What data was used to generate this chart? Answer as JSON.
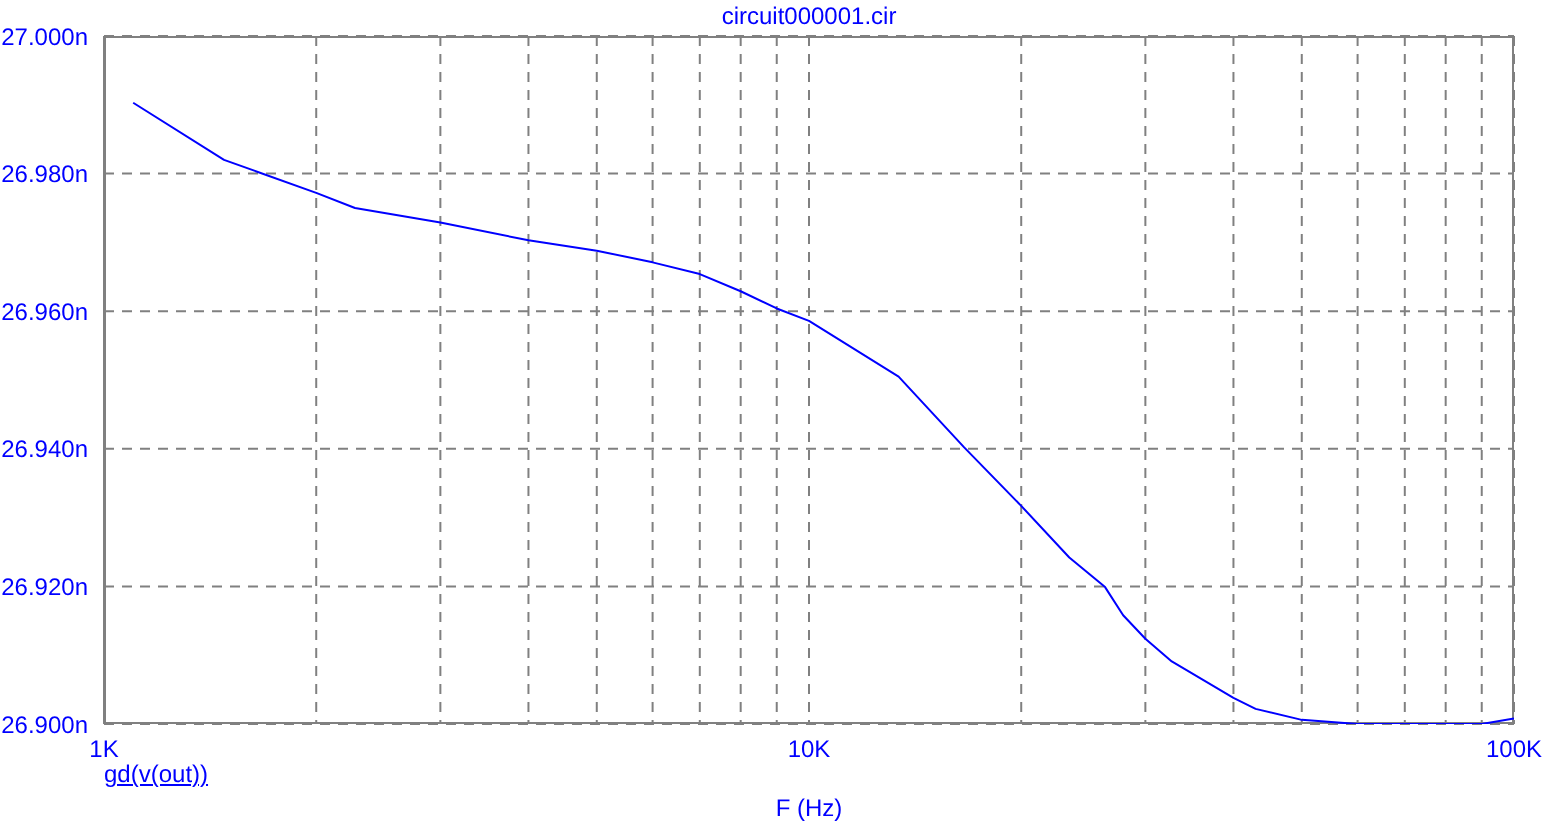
{
  "chart_data": {
    "type": "line",
    "title": "circuit000001.cir",
    "xlabel": "F (Hz)",
    "log": "x",
    "grid": true,
    "legend": "bottom left",
    "marker": "none",
    "line_style": "solid",
    "xlim": [
      1000,
      100000
    ],
    "ylim": [
      26.9,
      27.0
    ],
    "xticks": [
      {
        "value": 1000,
        "label": "1K"
      },
      {
        "value": 2000,
        "label": null
      },
      {
        "value": 3000,
        "label": null
      },
      {
        "value": 4000,
        "label": null
      },
      {
        "value": 5000,
        "label": null
      },
      {
        "value": 6000,
        "label": null
      },
      {
        "value": 7000,
        "label": null
      },
      {
        "value": 8000,
        "label": null
      },
      {
        "value": 9000,
        "label": null
      },
      {
        "value": 10000,
        "label": "10K"
      },
      {
        "value": 20000,
        "label": null
      },
      {
        "value": 30000,
        "label": null
      },
      {
        "value": 40000,
        "label": null
      },
      {
        "value": 50000,
        "label": null
      },
      {
        "value": 60000,
        "label": null
      },
      {
        "value": 70000,
        "label": null
      },
      {
        "value": 80000,
        "label": null
      },
      {
        "value": 90000,
        "label": null
      },
      {
        "value": 100000,
        "label": "100K"
      }
    ],
    "yticks": [
      {
        "value": 26.9,
        "label": "26.900n"
      },
      {
        "value": 26.92,
        "label": "26.920n"
      },
      {
        "value": 26.94,
        "label": "26.940n"
      },
      {
        "value": 26.96,
        "label": "26.960n"
      },
      {
        "value": 26.98,
        "label": "26.980n"
      },
      {
        "value": 27.0,
        "label": "27.000n"
      }
    ],
    "x": [
      1100,
      1480,
      2000,
      2270,
      3000,
      4000,
      5000,
      6000,
      7000,
      8000,
      9000,
      10000,
      13400,
      16600,
      20000,
      23400,
      26300,
      27900,
      30000,
      32700,
      40000,
      43000,
      50000,
      60000,
      74000,
      90000,
      100000
    ],
    "series": [
      {
        "name": "gd(v(out))",
        "color": "#0000ff",
        "values": [
          26.9903,
          26.982,
          26.9772,
          26.975,
          26.9729,
          26.9703,
          26.9688,
          26.9671,
          26.9654,
          26.9629,
          26.9604,
          26.9586,
          26.9505,
          26.9402,
          26.9317,
          26.9242,
          26.9199,
          26.9158,
          26.9124,
          26.9091,
          26.9038,
          26.9022,
          26.9006,
          26.9,
          26.9,
          26.9,
          26.9008
        ]
      }
    ]
  }
}
